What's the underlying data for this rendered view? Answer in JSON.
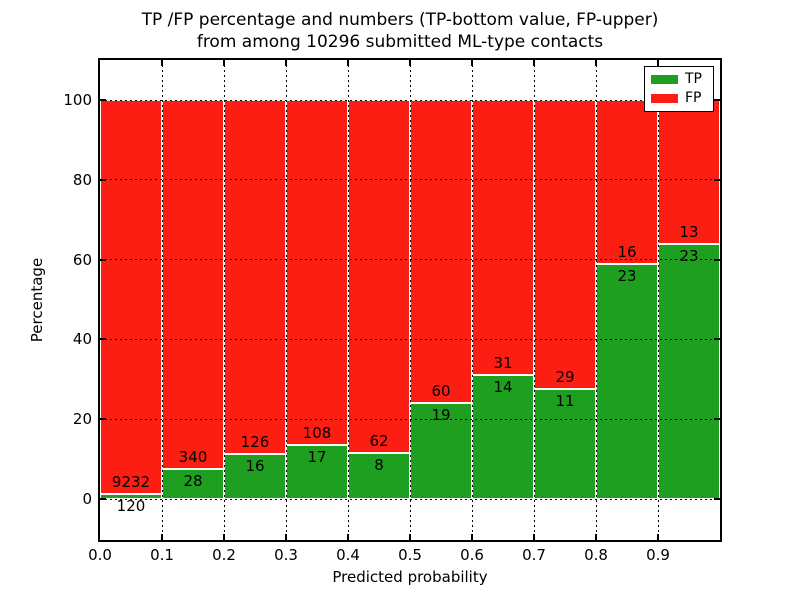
{
  "chart_data": {
    "type": "bar",
    "stacked": true,
    "title_line1": "TP /FP percentage and numbers (TP-bottom value, FP-upper)",
    "title_line2": "from among 10296 submitted ML-type contacts",
    "total_submitted_contacts": 10296,
    "xlabel": "Predicted probability",
    "ylabel": "Percentage",
    "x_tick_labels": [
      "0.0",
      "0.1",
      "0.2",
      "0.3",
      "0.4",
      "0.5",
      "0.6",
      "0.7",
      "0.8",
      "0.9"
    ],
    "y_ticks": [
      0,
      20,
      40,
      60,
      80,
      100
    ],
    "y_tick_labels": [
      "0",
      "20",
      "40",
      "60",
      "80",
      "100"
    ],
    "xlim": [
      0.0,
      1.0
    ],
    "ylim": [
      -10.3,
      110.0
    ],
    "bin_width": 0.1,
    "grid": "dotted black, both axes",
    "bar_edge_color": "#ffffff",
    "series": [
      {
        "name": "TP",
        "color": "#1f9f1f",
        "counts": [
          120,
          28,
          16,
          17,
          8,
          19,
          14,
          11,
          23,
          23
        ]
      },
      {
        "name": "FP",
        "color": "#fc1d13",
        "counts": [
          9232,
          340,
          126,
          108,
          62,
          60,
          31,
          29,
          16,
          13
        ]
      }
    ],
    "tp_percentages": [
      1.3,
      7.6,
      11.3,
      13.6,
      11.4,
      24.1,
      31.1,
      27.5,
      59.0,
      63.9
    ],
    "legend": {
      "position": "upper right",
      "entries": [
        "TP",
        "FP"
      ]
    }
  }
}
